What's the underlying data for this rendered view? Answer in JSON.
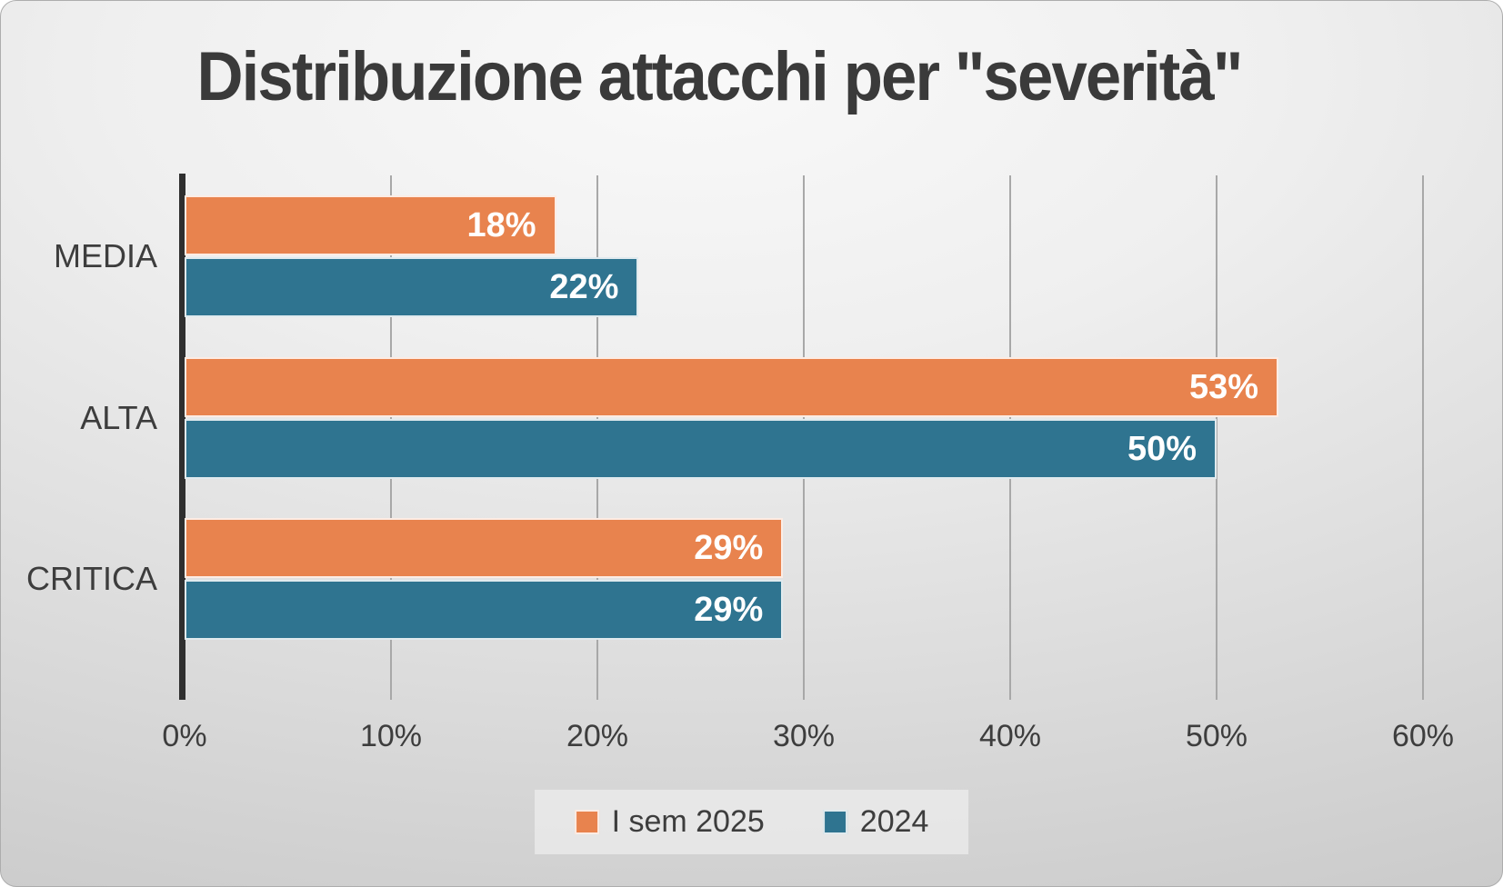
{
  "chart_data": {
    "type": "bar",
    "orientation": "horizontal",
    "title": "Distribuzione attacchi per \"severità\"",
    "categories": [
      "MEDIA",
      "ALTA",
      "CRITICA"
    ],
    "series": [
      {
        "name": "I sem 2025",
        "color": "#E8834E",
        "values": [
          18,
          53,
          29
        ],
        "value_labels": [
          "18%",
          "53%",
          "29%"
        ]
      },
      {
        "name": "2024",
        "color": "#2F7490",
        "values": [
          22,
          50,
          29
        ],
        "value_labels": [
          "22%",
          "50%",
          "29%"
        ]
      }
    ],
    "xlabel": "",
    "ylabel": "",
    "xlim": [
      0,
      60
    ],
    "x_ticks": [
      {
        "value": 0,
        "label": "0%"
      },
      {
        "value": 10,
        "label": "10%"
      },
      {
        "value": 20,
        "label": "20%"
      },
      {
        "value": 30,
        "label": "30%"
      },
      {
        "value": 40,
        "label": "40%"
      },
      {
        "value": 50,
        "label": "50%"
      },
      {
        "value": 60,
        "label": "60%"
      }
    ],
    "grid": "vertical-gridlines-on",
    "legend_position": "bottom-center",
    "value_label_position": "inside-end",
    "value_label_color": "#ffffff"
  },
  "style": {
    "background": "light-gray-radial-gradient",
    "title_color": "#3a3a3a",
    "axis_line_color": "#2f2f2f",
    "gridline_color": "#a8a8a8",
    "tick_label_color": "#3d3d3d"
  }
}
